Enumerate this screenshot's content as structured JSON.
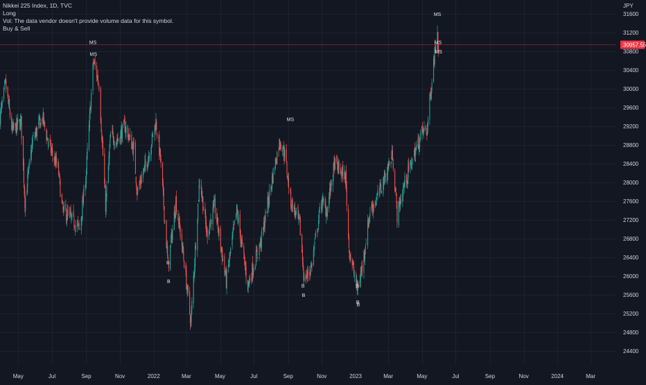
{
  "legend": {
    "symbol": "Nikkei 225 Index, 1D, TVC",
    "line2": "Long",
    "line3": "Vol: The data vendor doesn't provide volume data for this symbol.",
    "line4": "Buy & Sell"
  },
  "currency": "JPY",
  "last_price_label": "30957.55",
  "colors": {
    "background": "#131722",
    "up": "#26a69a",
    "down": "#ef5350",
    "grid": "#1e222d",
    "text": "#d1d4dc",
    "price_line": "#f23645"
  },
  "chart_data": {
    "type": "candlestick",
    "x_tick_labels": [
      "May",
      "Jul",
      "Sep",
      "Nov",
      "2022",
      "Mar",
      "May",
      "Jul",
      "Sep",
      "Nov",
      "2023",
      "Mar",
      "May",
      "Jul",
      "Sep",
      "Nov",
      "2024",
      "Mar"
    ],
    "y_ticks": [
      31600,
      31200,
      30800,
      30400,
      30000,
      29600,
      29200,
      28800,
      28400,
      28000,
      27600,
      27200,
      26800,
      26400,
      26000,
      25600,
      25200,
      24800,
      24400
    ],
    "ylim": [
      24100,
      31900
    ],
    "x_range": [
      "2021-03-29",
      "2024-04-15"
    ],
    "last_price": 30957.55,
    "close_path": [
      [
        "2021-03-29",
        29400
      ],
      [
        "2021-04-08",
        30100
      ],
      [
        "2021-04-20",
        29100
      ],
      [
        "2021-05-06",
        29300
      ],
      [
        "2021-05-13",
        27600
      ],
      [
        "2021-05-27",
        28900
      ],
      [
        "2021-06-14",
        29400
      ],
      [
        "2021-06-25",
        28800
      ],
      [
        "2021-07-12",
        28300
      ],
      [
        "2021-07-20",
        27400
      ],
      [
        "2021-07-30",
        27300
      ],
      [
        "2021-08-20",
        27000
      ],
      [
        "2021-08-31",
        28100
      ],
      [
        "2021-09-14",
        30600
      ],
      [
        "2021-09-24",
        30100
      ],
      [
        "2021-10-06",
        27500
      ],
      [
        "2021-10-15",
        29000
      ],
      [
        "2021-10-27",
        28900
      ],
      [
        "2021-11-10",
        29200
      ],
      [
        "2021-11-26",
        28700
      ],
      [
        "2021-12-02",
        27800
      ],
      [
        "2021-12-21",
        28500
      ],
      [
        "2022-01-05",
        29300
      ],
      [
        "2022-01-13",
        28500
      ],
      [
        "2022-01-27",
        26200
      ],
      [
        "2022-02-10",
        27600
      ],
      [
        "2022-02-24",
        26400
      ],
      [
        "2022-03-09",
        25000
      ],
      [
        "2022-03-25",
        28100
      ],
      [
        "2022-04-07",
        26900
      ],
      [
        "2022-04-21",
        27500
      ],
      [
        "2022-05-12",
        25900
      ],
      [
        "2022-05-31",
        27400
      ],
      [
        "2022-06-20",
        25800
      ],
      [
        "2022-07-15",
        26800
      ],
      [
        "2022-08-05",
        28200
      ],
      [
        "2022-08-17",
        28900
      ],
      [
        "2022-08-26",
        28600
      ],
      [
        "2022-09-06",
        27600
      ],
      [
        "2022-09-22",
        27100
      ],
      [
        "2022-09-30",
        25900
      ],
      [
        "2022-10-13",
        26200
      ],
      [
        "2022-10-31",
        27600
      ],
      [
        "2022-11-10",
        27400
      ],
      [
        "2022-11-24",
        28400
      ],
      [
        "2022-12-14",
        28100
      ],
      [
        "2022-12-20",
        26600
      ],
      [
        "2023-01-04",
        25700
      ],
      [
        "2023-01-13",
        26200
      ],
      [
        "2023-01-27",
        27400
      ],
      [
        "2023-02-10",
        27700
      ],
      [
        "2023-03-09",
        28600
      ],
      [
        "2023-03-17",
        27300
      ],
      [
        "2023-03-31",
        28000
      ],
      [
        "2023-04-20",
        28700
      ],
      [
        "2023-05-02",
        29100
      ],
      [
        "2023-05-10",
        29100
      ],
      [
        "2023-05-22",
        30600
      ],
      [
        "2023-05-29",
        31250
      ],
      [
        "2023-05-31",
        30900
      ]
    ],
    "signals": [
      {
        "date": "2021-09-13",
        "label": "MS",
        "price": 30900,
        "position": "above"
      },
      {
        "date": "2021-09-14",
        "label": "MS",
        "price": 30650,
        "position": "above"
      },
      {
        "date": "2022-01-27",
        "label": "B",
        "price": 26400,
        "position": "below"
      },
      {
        "date": "2022-01-28",
        "label": "B",
        "price": 26000,
        "position": "below"
      },
      {
        "date": "2022-09-05",
        "label": "MS",
        "price": 29250,
        "position": "above"
      },
      {
        "date": "2022-09-28",
        "label": "B",
        "price": 25900,
        "position": "below"
      },
      {
        "date": "2022-09-29",
        "label": "B",
        "price": 25700,
        "position": "below"
      },
      {
        "date": "2023-01-04",
        "label": "B",
        "price": 25900,
        "position": "below"
      },
      {
        "date": "2023-01-05",
        "label": "B",
        "price": 25550,
        "position": "below"
      },
      {
        "date": "2023-01-06",
        "label": "B",
        "price": 25500,
        "position": "below"
      },
      {
        "date": "2023-05-29",
        "label": "MS",
        "price": 31500,
        "position": "above"
      },
      {
        "date": "2023-05-30",
        "label": "MS",
        "price": 30900,
        "position": "above"
      },
      {
        "date": "2023-05-31",
        "label": "MS",
        "price": 30700,
        "position": "above"
      }
    ],
    "grid": true,
    "legend": "top-left"
  }
}
